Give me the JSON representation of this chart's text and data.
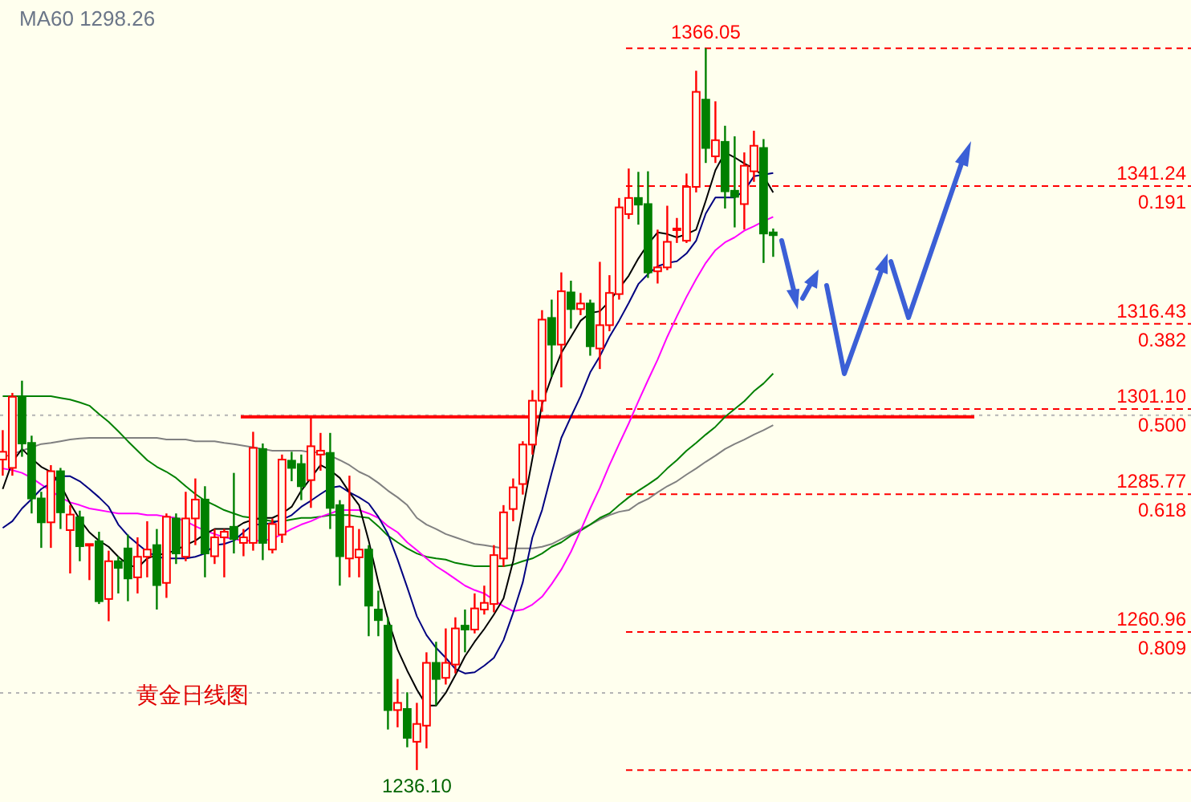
{
  "chart_data": {
    "type": "candlestick",
    "categories": [
      null,
      null,
      null,
      null,
      null,
      null,
      null,
      null,
      null,
      null,
      null,
      null,
      null,
      null,
      null,
      null,
      null,
      null,
      null,
      null,
      null,
      null,
      null,
      null,
      null,
      null,
      null,
      null,
      null,
      null,
      null,
      null,
      null,
      null,
      null,
      null,
      null,
      null,
      null,
      null,
      null,
      null,
      null,
      null,
      null,
      null,
      null,
      null,
      null,
      null,
      null,
      null,
      null,
      null,
      null,
      null,
      null,
      null,
      null,
      null,
      null,
      null,
      null,
      null,
      null,
      null,
      null,
      null,
      null,
      null,
      null,
      null,
      null,
      null,
      null,
      null,
      null,
      null,
      null,
      null,
      null
    ],
    "ohlc": [
      [
        1292.0,
        1297.3,
        1289.1,
        1293.4
      ],
      [
        1290.5,
        1304.0,
        1289.1,
        1303.3
      ],
      [
        1303.3,
        1306.2,
        1292.5,
        1294.9
      ],
      [
        1295.0,
        1296.3,
        1282.3,
        1285.0
      ],
      [
        1285.0,
        1286.2,
        1276.1,
        1280.7
      ],
      [
        1280.7,
        1291.0,
        1276.1,
        1289.9
      ],
      [
        1289.9,
        1290.5,
        1279.5,
        1282.5
      ],
      [
        1279.3,
        1283.8,
        1271.5,
        1282.1
      ],
      [
        1281.6,
        1282.8,
        1273.7,
        1276.4
      ],
      [
        1276.6,
        1276.8,
        1270.3,
        1276.8
      ],
      [
        1277.3,
        1279.0,
        1266.0,
        1266.5
      ],
      [
        1266.9,
        1275.6,
        1262.9,
        1273.7
      ],
      [
        1273.7,
        1274.6,
        1267.9,
        1272.5
      ],
      [
        1276.0,
        1278.5,
        1266.5,
        1270.6
      ],
      [
        1270.8,
        1278.0,
        1267.9,
        1274.5
      ],
      [
        1274.5,
        1280.9,
        1270.8,
        1275.8
      ],
      [
        1276.6,
        1279.5,
        1265.0,
        1269.4
      ],
      [
        1269.8,
        1282.3,
        1267.1,
        1281.7
      ],
      [
        1281.4,
        1282.3,
        1273.2,
        1275.1
      ],
      [
        1274.5,
        1286.2,
        1273.7,
        1281.4
      ],
      [
        1281.4,
        1288.6,
        1276.6,
        1284.8
      ],
      [
        1284.8,
        1287.2,
        1270.8,
        1275.1
      ],
      [
        1274.6,
        1279.5,
        1273.2,
        1278.0
      ],
      [
        1278.0,
        1279.5,
        1270.8,
        1279.0
      ],
      [
        1279.9,
        1289.6,
        1275.1,
        1277.7
      ],
      [
        1277.0,
        1279.5,
        1274.6,
        1278.0
      ],
      [
        1277.0,
        1297.0,
        1275.6,
        1294.1
      ],
      [
        1293.9,
        1294.9,
        1273.9,
        1277.0
      ],
      [
        1275.8,
        1281.4,
        1275.1,
        1280.4
      ],
      [
        1278.5,
        1292.9,
        1277.0,
        1292.0
      ],
      [
        1291.8,
        1293.4,
        1288.1,
        1290.5
      ],
      [
        1291.2,
        1292.9,
        1284.7,
        1287.2
      ],
      [
        1288.3,
        1299.7,
        1283.3,
        1294.4
      ],
      [
        1292.9,
        1296.8,
        1290.0,
        1293.6
      ],
      [
        1293.2,
        1296.8,
        1279.5,
        1283.3
      ],
      [
        1283.8,
        1284.7,
        1269.3,
        1274.6
      ],
      [
        1274.2,
        1289.1,
        1270.8,
        1279.9
      ],
      [
        1274.4,
        1279.5,
        1270.8,
        1275.8
      ],
      [
        1275.8,
        1276.6,
        1260.2,
        1265.7
      ],
      [
        1265.0,
        1268.4,
        1260.2,
        1263.1
      ],
      [
        1262.1,
        1263.6,
        1243.4,
        1246.9
      ],
      [
        1246.9,
        1252.5,
        1243.8,
        1248.2
      ],
      [
        1247.1,
        1250.1,
        1240.2,
        1241.9
      ],
      [
        1241.2,
        1248.2,
        1236.1,
        1244.4
      ],
      [
        1244.1,
        1257.3,
        1240.0,
        1255.4
      ],
      [
        1255.4,
        1259.2,
        1247.7,
        1252.5
      ],
      [
        1252.7,
        1261.6,
        1251.5,
        1255.4
      ],
      [
        1255.1,
        1263.6,
        1253.5,
        1261.6
      ],
      [
        1262.1,
        1265.0,
        1257.3,
        1261.4
      ],
      [
        1261.4,
        1267.9,
        1260.7,
        1265.2
      ],
      [
        1265.0,
        1269.3,
        1264.1,
        1266.2
      ],
      [
        1266.0,
        1276.6,
        1264.5,
        1274.8
      ],
      [
        1274.2,
        1283.8,
        1272.7,
        1282.5
      ],
      [
        1283.1,
        1288.6,
        1280.9,
        1287.0
      ],
      [
        1287.6,
        1295.3,
        1285.7,
        1294.7
      ],
      [
        1294.7,
        1304.5,
        1292.9,
        1302.6
      ],
      [
        1302.6,
        1318.9,
        1300.6,
        1317.2
      ],
      [
        1317.5,
        1320.8,
        1306.9,
        1312.7
      ],
      [
        1312.7,
        1325.7,
        1305.0,
        1322.3
      ],
      [
        1322.1,
        1324.2,
        1315.6,
        1319.1
      ],
      [
        1319.1,
        1322.0,
        1318.0,
        1320.1
      ],
      [
        1320.1,
        1320.8,
        1310.7,
        1312.4
      ],
      [
        1312.0,
        1327.6,
        1308.3,
        1316.2
      ],
      [
        1316.2,
        1325.2,
        1315.1,
        1322.0
      ],
      [
        1321.8,
        1339.1,
        1320.8,
        1337.4
      ],
      [
        1336.2,
        1344.4,
        1335.3,
        1339.1
      ],
      [
        1339.1,
        1343.8,
        1334.3,
        1337.9
      ],
      [
        1338.0,
        1343.9,
        1324.7,
        1325.7
      ],
      [
        1325.9,
        1333.4,
        1323.7,
        1326.6
      ],
      [
        1326.6,
        1337.7,
        1326.1,
        1331.2
      ],
      [
        1333.5,
        1335.5,
        1331.0,
        1333.6
      ],
      [
        1331.4,
        1343.5,
        1331.0,
        1341.1
      ],
      [
        1341.1,
        1362.0,
        1340.1,
        1358.2
      ],
      [
        1356.8,
        1366.05,
        1345.4,
        1348.1
      ],
      [
        1346.6,
        1356.5,
        1345.4,
        1349.5
      ],
      [
        1349.2,
        1352.1,
        1337.2,
        1340.3
      ],
      [
        1340.4,
        1350.2,
        1333.8,
        1339.3
      ],
      [
        1338.0,
        1347.3,
        1333.4,
        1344.9
      ],
      [
        1343.9,
        1351.2,
        1342.0,
        1348.5
      ],
      [
        1348.1,
        1349.7,
        1327.4,
        1332.7
      ],
      [
        1332.9,
        1333.6,
        1328.5,
        1332.4
      ]
    ],
    "colors": [
      "#ff0000",
      "#ff0000",
      "#008000",
      "#008000",
      "#008000",
      "#ff0000",
      "#008000",
      "#ff0000",
      "#008000",
      "#ff0000",
      "#008000",
      "#ff0000",
      "#008000",
      "#008000",
      "#ff0000",
      "#ff0000",
      "#008000",
      "#ff0000",
      "#008000",
      "#ff0000",
      "#ff0000",
      "#008000",
      "#ff0000",
      "#ff0000",
      "#008000",
      "#ff0000",
      "#ff0000",
      "#008000",
      "#ff0000",
      "#ff0000",
      "#008000",
      "#008000",
      "#ff0000",
      "#ff0000",
      "#008000",
      "#008000",
      "#ff0000",
      "#ff0000",
      "#008000",
      "#008000",
      "#008000",
      "#ff0000",
      "#008000",
      "#ff0000",
      "#ff0000",
      "#008000",
      "#ff0000",
      "#ff0000",
      "#008000",
      "#ff0000",
      "#ff0000",
      "#ff0000",
      "#ff0000",
      "#ff0000",
      "#ff0000",
      "#ff0000",
      "#ff0000",
      "#008000",
      "#ff0000",
      "#008000",
      "#ff0000",
      "#008000",
      "#ff0000",
      "#ff0000",
      "#ff0000",
      "#ff0000",
      "#008000",
      "#008000",
      "#ff0000",
      "#ff0000",
      "#ff0000",
      "#ff0000",
      "#ff0000",
      "#008000",
      "#ff0000",
      "#008000",
      "#008000",
      "#ff0000",
      "#ff0000",
      "#008000",
      "#008000"
    ],
    "series": [
      {
        "type": "line",
        "color": "#808080",
        "values": [
          1292.4,
          1293.0,
          1293.6,
          1294.2,
          1294.8,
          1295.0,
          1295.3,
          1295.6,
          1295.8,
          1295.9,
          1295.9,
          1295.9,
          1295.9,
          1295.9,
          1295.9,
          1295.9,
          1295.9,
          1295.6,
          1295.6,
          1295.6,
          1295.3,
          1295.3,
          1295.3,
          1295.0,
          1294.8,
          1294.5,
          1294.2,
          1293.9,
          1293.6,
          1293.6,
          1293.6,
          1293.6,
          1293.3,
          1293.3,
          1292.7,
          1291.9,
          1291.0,
          1289.8,
          1289.0,
          1287.8,
          1286.4,
          1285.2,
          1283.8,
          1281.5,
          1280.3,
          1279.5,
          1278.6,
          1278.0,
          1277.4,
          1276.8,
          1276.6,
          1276.3,
          1276.0,
          1276.0,
          1276.0,
          1276.0,
          1276.3,
          1276.8,
          1277.7,
          1278.6,
          1279.5,
          1280.3,
          1281.2,
          1282.0,
          1282.6,
          1282.9,
          1284.1,
          1284.9,
          1286.1,
          1287.2,
          1288.1,
          1289.3,
          1290.4,
          1291.6,
          1292.7,
          1293.9,
          1294.8,
          1295.6,
          1296.5,
          1297.3,
          1298.2
        ]
      },
      {
        "type": "line",
        "color": "#008000",
        "values": [
          1303.4,
          1303.4,
          1303.4,
          1303.4,
          1303.4,
          1303.4,
          1303.1,
          1302.8,
          1302.3,
          1301.7,
          1300.2,
          1298.8,
          1297.1,
          1295.3,
          1293.6,
          1291.9,
          1290.7,
          1289.8,
          1288.7,
          1287.2,
          1285.8,
          1284.6,
          1283.8,
          1282.9,
          1282.3,
          1281.7,
          1281.5,
          1281.2,
          1280.9,
          1280.9,
          1281.2,
          1281.5,
          1281.5,
          1281.7,
          1282.0,
          1282.0,
          1282.0,
          1281.7,
          1281.5,
          1280.0,
          1278.3,
          1277.1,
          1276.0,
          1275.1,
          1274.5,
          1274.2,
          1274.0,
          1273.4,
          1273.1,
          1272.8,
          1272.8,
          1272.8,
          1272.8,
          1273.1,
          1273.7,
          1274.2,
          1275.1,
          1276.3,
          1277.1,
          1278.3,
          1279.2,
          1280.3,
          1281.5,
          1282.3,
          1283.8,
          1285.2,
          1286.4,
          1287.5,
          1288.7,
          1290.4,
          1291.9,
          1293.6,
          1295.0,
          1296.5,
          1297.9,
          1299.7,
          1301.1,
          1302.5,
          1304.3,
          1305.7,
          1307.5
        ]
      },
      {
        "type": "line",
        "color": "#ff00ff",
        "values": [
          1290.4,
          1290.1,
          1289.6,
          1288.7,
          1287.5,
          1286.4,
          1285.2,
          1284.3,
          1283.8,
          1283.2,
          1282.9,
          1282.6,
          1282.3,
          1282.3,
          1282.3,
          1282.0,
          1282.0,
          1281.7,
          1281.5,
          1280.9,
          1280.0,
          1279.2,
          1278.6,
          1278.0,
          1277.7,
          1277.4,
          1277.4,
          1277.4,
          1277.7,
          1278.6,
          1279.5,
          1280.3,
          1280.9,
          1281.7,
          1282.3,
          1282.9,
          1282.9,
          1282.9,
          1282.3,
          1281.5,
          1280.0,
          1278.9,
          1277.1,
          1275.7,
          1274.2,
          1272.8,
          1271.7,
          1270.5,
          1269.3,
          1268.5,
          1267.9,
          1266.7,
          1265.6,
          1264.7,
          1265.0,
          1265.9,
          1267.3,
          1269.6,
          1272.2,
          1275.4,
          1279.2,
          1283.2,
          1286.9,
          1291.0,
          1294.8,
          1298.5,
          1302.5,
          1306.3,
          1310.0,
          1314.1,
          1317.8,
          1321.3,
          1324.5,
          1327.4,
          1329.7,
          1331.1,
          1332.0,
          1333.2,
          1334.0,
          1334.9,
          1335.7
        ]
      },
      {
        "type": "line",
        "color": "#000080",
        "values": [
          1279.7,
          1280.9,
          1283.2,
          1284.9,
          1286.7,
          1287.8,
          1289.0,
          1289.0,
          1288.1,
          1286.7,
          1285.2,
          1283.5,
          1280.3,
          1278.3,
          1276.8,
          1275.4,
          1274.5,
          1274.2,
          1274.2,
          1274.2,
          1274.5,
          1275.1,
          1276.6,
          1276.8,
          1277.4,
          1278.9,
          1280.3,
          1280.3,
          1280.6,
          1281.2,
          1282.0,
          1283.5,
          1284.6,
          1285.8,
          1286.9,
          1287.2,
          1286.1,
          1285.2,
          1284.1,
          1281.7,
          1278.6,
          1274.0,
          1269.0,
          1263.8,
          1260.4,
          1258.1,
          1256.3,
          1254.3,
          1253.5,
          1253.7,
          1254.9,
          1256.3,
          1259.5,
          1264.4,
          1269.9,
          1278.0,
          1282.9,
          1289.6,
          1295.9,
          1299.7,
          1303.4,
          1307.7,
          1310.6,
          1314.1,
          1317.0,
          1320.2,
          1323.6,
          1325.4,
          1326.8,
          1327.4,
          1327.7,
          1329.1,
          1331.4,
          1336.3,
          1339.2,
          1339.2,
          1339.2,
          1340.4,
          1343.0,
          1343.3,
          1343.6
        ]
      },
      {
        "type": "line",
        "color": "#000000",
        "values": [
          1286.7,
          1291.6,
          1293.9,
          1292.2,
          1290.7,
          1289.8,
          1287.5,
          1284.1,
          1281.2,
          1278.9,
          1277.4,
          1276.3,
          1274.5,
          1273.1,
          1272.5,
          1274.2,
          1274.8,
          1275.1,
          1275.7,
          1276.6,
          1277.4,
          1278.6,
          1279.5,
          1279.5,
          1279.5,
          1280.6,
          1281.2,
          1281.5,
          1281.5,
          1282.3,
          1283.5,
          1286.4,
          1288.7,
          1291.0,
          1290.1,
          1288.7,
          1286.1,
          1283.8,
          1277.4,
          1269.9,
          1263.3,
          1257.8,
          1254.0,
          1250.6,
          1247.7,
          1247.7,
          1250.0,
          1253.2,
          1256.6,
          1259.2,
          1261.5,
          1264.1,
          1267.0,
          1273.7,
          1282.9,
          1292.2,
          1302.0,
          1306.9,
          1311.2,
          1314.1,
          1317.0,
          1318.4,
          1318.7,
          1320.5,
          1322.8,
          1325.1,
          1328.2,
          1330.8,
          1332.9,
          1332.6,
          1332.0,
          1332.6,
          1333.4,
          1338.6,
          1344.1,
          1347.3,
          1346.4,
          1345.3,
          1344.4,
          1343.0,
          1340.1
        ]
      }
    ],
    "ylim": [
      1230.35,
      1374.74
    ],
    "ref_lines": [
      {
        "axis": "y",
        "value": 1300,
        "label": null,
        "color": "#b4b4b4",
        "line_style": "dotted"
      },
      {
        "axis": "y",
        "value": 1250,
        "label": null,
        "color": "#b4b4b4",
        "line_style": "dotted"
      },
      {
        "axis": "y",
        "value": 1366.05,
        "label": null,
        "color": "#ff0000",
        "line_style": "dashed"
      },
      {
        "axis": "y",
        "value": 1341.24,
        "label": "1341.24 0.191",
        "color": "#ff0000",
        "line_style": "dashed"
      },
      {
        "axis": "y",
        "value": 1316.43,
        "label": "1316.43 0.382",
        "color": "#ff0000",
        "line_style": "dashed"
      },
      {
        "axis": "y",
        "value": 1301.1,
        "label": "1301.10 0.500",
        "color": "#ff0000",
        "line_style": "dashed"
      },
      {
        "axis": "y",
        "value": 1285.77,
        "label": "1285.77 0.618",
        "color": "#ff0000",
        "line_style": "dashed"
      },
      {
        "axis": "y",
        "value": 1260.96,
        "label": "1260.96 0.809",
        "color": "#ff0000",
        "line_style": "dashed"
      },
      {
        "axis": "y",
        "value": 1236.1,
        "label": null,
        "color": "#ff0000",
        "line_style": "dashed"
      },
      {
        "axis": "y",
        "value": 1299.7,
        "label": null,
        "color": "#ff0000",
        "line_style": "solid"
      }
    ],
    "annotations": [
      "MA60 1298.26",
      "黄金日线图",
      {
        "text": "1366.05",
        "y": 1366.05
      },
      {
        "text": "1236.10",
        "y": 1236.1
      }
    ]
  }
}
